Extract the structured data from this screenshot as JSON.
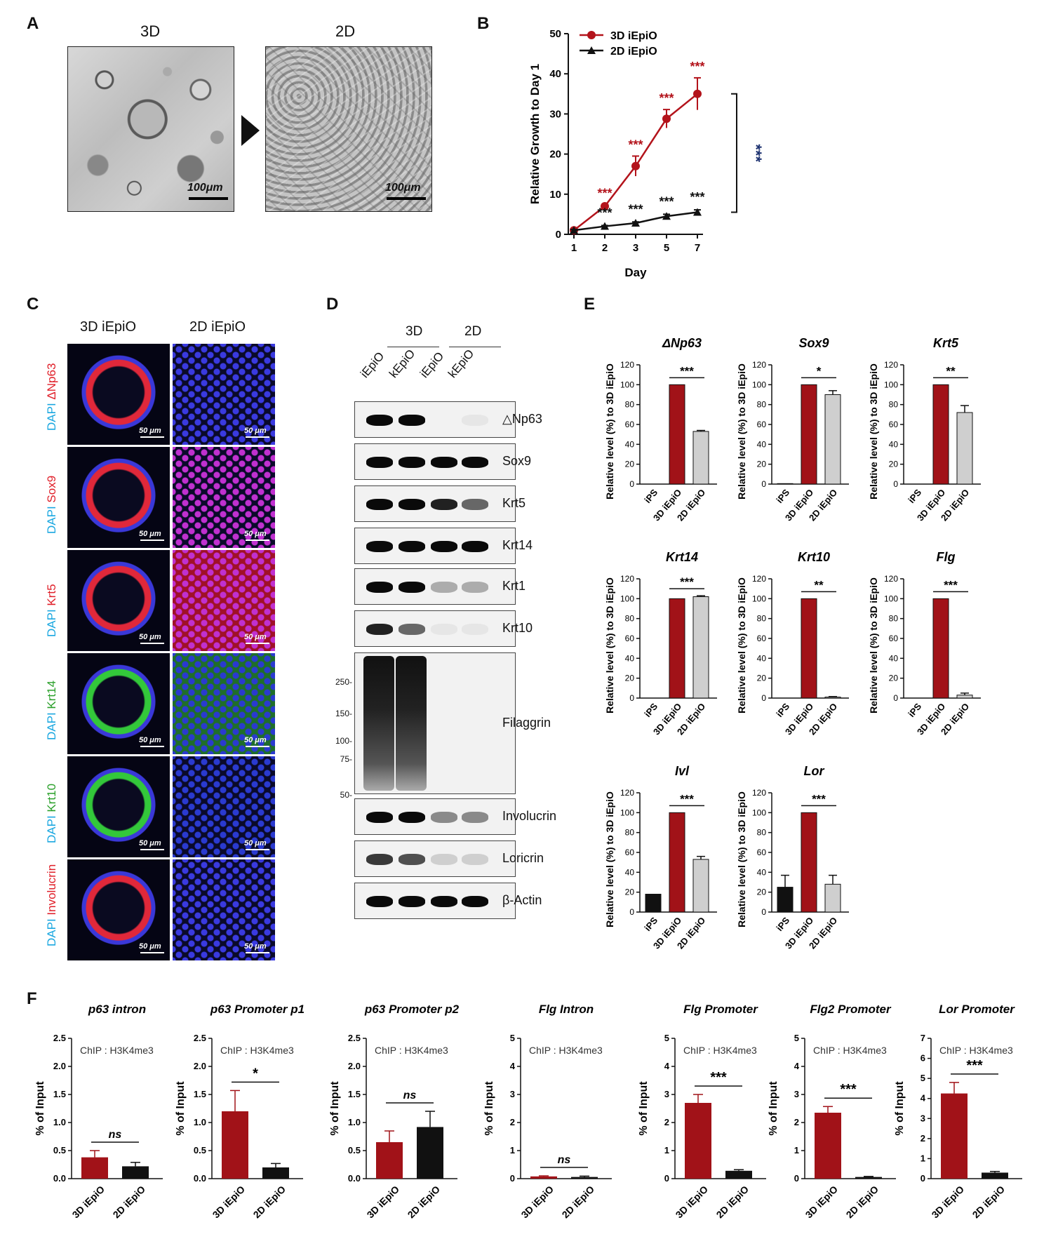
{
  "panels": {
    "A": "A",
    "B": "B",
    "C": "C",
    "D": "D",
    "E": "E",
    "F": "F"
  },
  "panelA": {
    "left_title": "3D",
    "right_title": "2D",
    "scale_left": "100μm",
    "scale_right": "100μm"
  },
  "panelC": {
    "col1": "3D iEpiO",
    "col2": "2D iEpiO",
    "rows": [
      {
        "dapi": "DAPI",
        "marker": "ΔNp63",
        "marker_color": "#e0202a"
      },
      {
        "dapi": "DAPI",
        "marker": "Sox9",
        "marker_color": "#e0202a"
      },
      {
        "dapi": "DAPI",
        "marker": "Krt5",
        "marker_color": "#e0202a"
      },
      {
        "dapi": "DAPI",
        "marker": "Krt14",
        "marker_color": "#2aa02a"
      },
      {
        "dapi": "DAPI",
        "marker": "Krt10",
        "marker_color": "#2aa02a"
      },
      {
        "dapi": "DAPI",
        "marker": "Involucrin",
        "marker_color": "#e0202a"
      }
    ],
    "scale": "50 μm"
  },
  "panelD": {
    "group3d": "3D",
    "group2d": "2D",
    "lanes": [
      "iEpiO",
      "kEpiO",
      "iEpiO",
      "kEpiO"
    ],
    "blots": [
      "△Np63",
      "Sox9",
      "Krt5",
      "Krt14",
      "Krt1",
      "Krt10",
      "Filaggrin",
      "Involucrin",
      "Loricrin",
      "β-Actin"
    ],
    "mw": [
      "250-",
      "150-",
      "100-",
      "75-",
      "50-"
    ]
  },
  "chart_data": [
    {
      "type": "line",
      "panel": "B",
      "xlabel": "Day",
      "ylabel": "Relative Growth to  Day 1",
      "x": [
        1,
        2,
        3,
        5,
        7
      ],
      "ylim": [
        0,
        50
      ],
      "yticks": [
        0,
        10,
        20,
        30,
        40,
        50
      ],
      "series": [
        {
          "name": "3D iEpiO",
          "color": "#b3131b",
          "values": [
            1,
            7,
            17,
            28.8,
            35
          ],
          "errors": [
            0.3,
            0.4,
            2.5,
            2.3,
            4
          ],
          "sig": [
            "",
            "***",
            "***",
            "***",
            "***"
          ]
        },
        {
          "name": "2D iEpiO",
          "color": "#111111",
          "values": [
            1,
            2,
            2.8,
            4.5,
            5.5
          ],
          "errors": [
            0.2,
            0.2,
            0.3,
            0.5,
            0.6
          ],
          "sig": [
            "",
            "***",
            "***",
            "***",
            "***"
          ]
        }
      ],
      "bracket_sig": "***"
    },
    {
      "type": "bar",
      "panel": "E",
      "ylabel": "Relative level (%) to 3D iEpiO",
      "categories": [
        "iPS",
        "3D iEpiO",
        "2D iEpiO"
      ],
      "colors": [
        "#111111",
        "#a11218",
        "#cfcfcf"
      ],
      "ylim": [
        0,
        120
      ],
      "yticks": [
        0,
        20,
        40,
        60,
        80,
        100,
        120
      ],
      "subplots": [
        {
          "title": "ΔNp63",
          "values": [
            0,
            100,
            53
          ],
          "errors": [
            0,
            0,
            1
          ],
          "sig": "***"
        },
        {
          "title": "Sox9",
          "values": [
            0.5,
            100,
            90
          ],
          "errors": [
            0,
            0,
            4
          ],
          "sig": "*"
        },
        {
          "title": "Krt5",
          "values": [
            0,
            100,
            72
          ],
          "errors": [
            0,
            0,
            7
          ],
          "sig": "**"
        },
        {
          "title": "Krt14",
          "values": [
            0,
            100,
            102
          ],
          "errors": [
            0,
            0,
            1
          ],
          "sig": "***"
        },
        {
          "title": "Krt10",
          "values": [
            0,
            100,
            1
          ],
          "errors": [
            0,
            0,
            0.5
          ],
          "sig": "**"
        },
        {
          "title": "Flg",
          "values": [
            0,
            100,
            3
          ],
          "errors": [
            0,
            0,
            2
          ],
          "sig": "***"
        },
        {
          "title": "Ivl",
          "values": [
            18,
            100,
            53
          ],
          "errors": [
            0,
            0,
            3
          ],
          "sig": "***"
        },
        {
          "title": "Lor",
          "values": [
            25,
            100,
            28
          ],
          "errors": [
            12,
            0,
            9
          ],
          "sig": "***"
        }
      ]
    },
    {
      "type": "bar",
      "panel": "F",
      "ylabel": "% of Input",
      "annotation": "ChIP : H3K4me3",
      "categories": [
        "3D iEpiO",
        "2D iEpiO"
      ],
      "subplots": [
        {
          "title": "p63 intron",
          "ylim": [
            0,
            2.5
          ],
          "yticks": [
            "0.0",
            "0.5",
            "1.0",
            "1.5",
            "2.0",
            "2.5"
          ],
          "values": [
            0.38,
            0.22
          ],
          "errors": [
            0.12,
            0.07
          ],
          "colors": [
            "#a11218",
            "#111111"
          ],
          "sig": "ns"
        },
        {
          "title": "p63 Promoter p1",
          "ylim": [
            0,
            2.5
          ],
          "yticks": [
            "0.0",
            "0.5",
            "1.0",
            "1.5",
            "2.0",
            "2.5"
          ],
          "values": [
            1.2,
            0.2
          ],
          "errors": [
            0.37,
            0.07
          ],
          "colors": [
            "#a11218",
            "#111111"
          ],
          "sig": "*"
        },
        {
          "title": "p63 Promoter p2",
          "ylim": [
            0,
            2.5
          ],
          "yticks": [
            "0.0",
            "0.5",
            "1.0",
            "1.5",
            "2.0",
            "2.5"
          ],
          "values": [
            0.65,
            0.92
          ],
          "errors": [
            0.2,
            0.28
          ],
          "colors": [
            "#a11218",
            "#111111"
          ],
          "sig": "ns"
        },
        {
          "title": "Flg Intron",
          "ylim": [
            0,
            5
          ],
          "yticks": [
            "0",
            "1",
            "2",
            "3",
            "4",
            "5"
          ],
          "values": [
            0.08,
            0.06
          ],
          "errors": [
            0.02,
            0.03
          ],
          "colors": [
            "#a11218",
            "#111111"
          ],
          "sig": "ns"
        },
        {
          "title": "Flg Promoter",
          "ylim": [
            0,
            5
          ],
          "yticks": [
            "0",
            "1",
            "2",
            "3",
            "4",
            "5"
          ],
          "values": [
            2.7,
            0.28
          ],
          "errors": [
            0.3,
            0.04
          ],
          "colors": [
            "#a11218",
            "#111111"
          ],
          "sig": "***"
        },
        {
          "title": "Flg2 Promoter",
          "ylim": [
            0,
            5
          ],
          "yticks": [
            "0",
            "1",
            "2",
            "3",
            "4",
            "5"
          ],
          "values": [
            2.35,
            0.06
          ],
          "errors": [
            0.22,
            0.02
          ],
          "colors": [
            "#a11218",
            "#111111"
          ],
          "sig": "***"
        },
        {
          "title": "Lor Promoter",
          "ylim": [
            0,
            7
          ],
          "yticks": [
            "0",
            "1",
            "2",
            "3",
            "4",
            "5",
            "6",
            "7"
          ],
          "values": [
            4.25,
            0.3
          ],
          "errors": [
            0.55,
            0.06
          ],
          "colors": [
            "#a11218",
            "#111111"
          ],
          "sig": "***"
        }
      ]
    }
  ]
}
